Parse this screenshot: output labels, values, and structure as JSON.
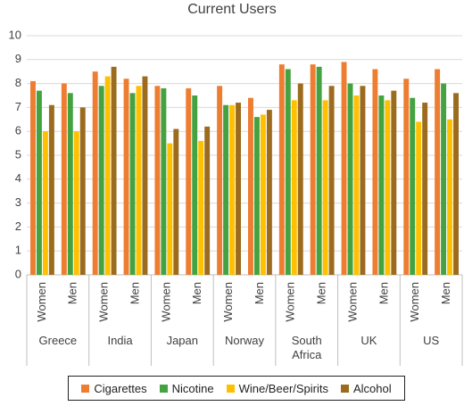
{
  "chart_data": {
    "type": "bar",
    "title": "Current Users",
    "categories": [
      "Women",
      "Men",
      "Women",
      "Men",
      "Women",
      "Men",
      "Women",
      "Men",
      "Women",
      "Men",
      "Women",
      "Men",
      "Women",
      "Men"
    ],
    "groups": [
      "Greece",
      "India",
      "Japan",
      "Norway",
      "South Africa",
      "UK",
      "US"
    ],
    "series": [
      {
        "name": "Cigarettes",
        "color": "#ed7d31",
        "values": [
          8.1,
          8.0,
          8.5,
          8.2,
          7.9,
          7.8,
          7.9,
          7.4,
          8.8,
          8.8,
          8.9,
          8.6,
          8.2,
          8.6
        ]
      },
      {
        "name": "Nicotine",
        "color": "#44a340",
        "values": [
          7.7,
          7.6,
          7.9,
          7.6,
          7.8,
          7.5,
          7.1,
          6.6,
          8.6,
          8.7,
          8.0,
          7.5,
          7.4,
          8.0
        ]
      },
      {
        "name": "Wine/Beer/Spirits",
        "color": "#ffc000",
        "values": [
          6.0,
          6.0,
          8.3,
          7.9,
          5.5,
          5.6,
          7.1,
          6.7,
          7.3,
          7.3,
          7.5,
          7.3,
          6.4,
          6.5
        ]
      },
      {
        "name": "Alcohol",
        "color": "#9c6b1e",
        "values": [
          7.1,
          7.0,
          8.7,
          8.3,
          6.1,
          6.2,
          7.2,
          6.9,
          8.0,
          7.9,
          7.9,
          7.7,
          7.2,
          7.6
        ]
      }
    ],
    "ylim": [
      0,
      10
    ],
    "yticks": [
      0,
      1,
      2,
      3,
      4,
      5,
      6,
      7,
      8,
      9,
      10
    ],
    "grid": true
  }
}
